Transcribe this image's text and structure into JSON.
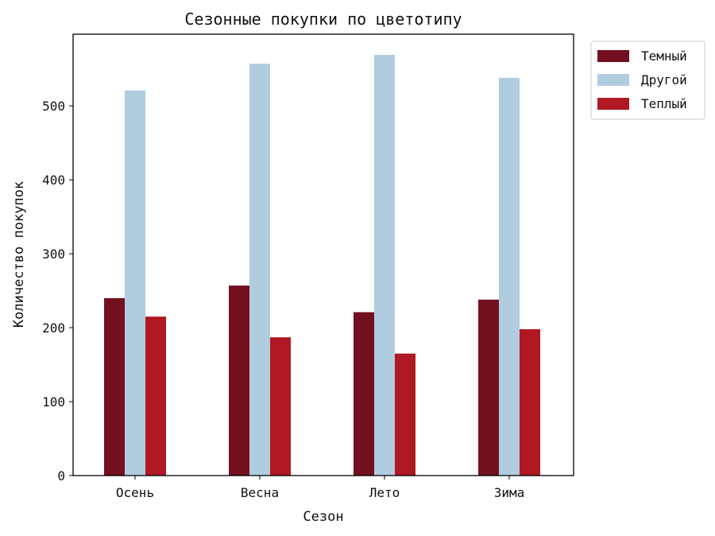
{
  "chart_data": {
    "type": "bar",
    "title": "Сезонные покупки по цветотипу",
    "xlabel": "Сезон",
    "ylabel": "Количество покупок",
    "categories": [
      "Осень",
      "Весна",
      "Лето",
      "Зима"
    ],
    "series": [
      {
        "name": "Темный",
        "color": "#73101f",
        "values": [
          240,
          257,
          221,
          238
        ]
      },
      {
        "name": "Другой",
        "color": "#b0cde0",
        "values": [
          521,
          557,
          569,
          538
        ]
      },
      {
        "name": "Теплый",
        "color": "#b01823",
        "values": [
          215,
          187,
          165,
          198
        ]
      }
    ],
    "yticks": [
      0,
      100,
      200,
      300,
      400,
      500
    ],
    "ylim": [
      0,
      597
    ],
    "grid": false,
    "legend_position": "outside-top-right"
  }
}
